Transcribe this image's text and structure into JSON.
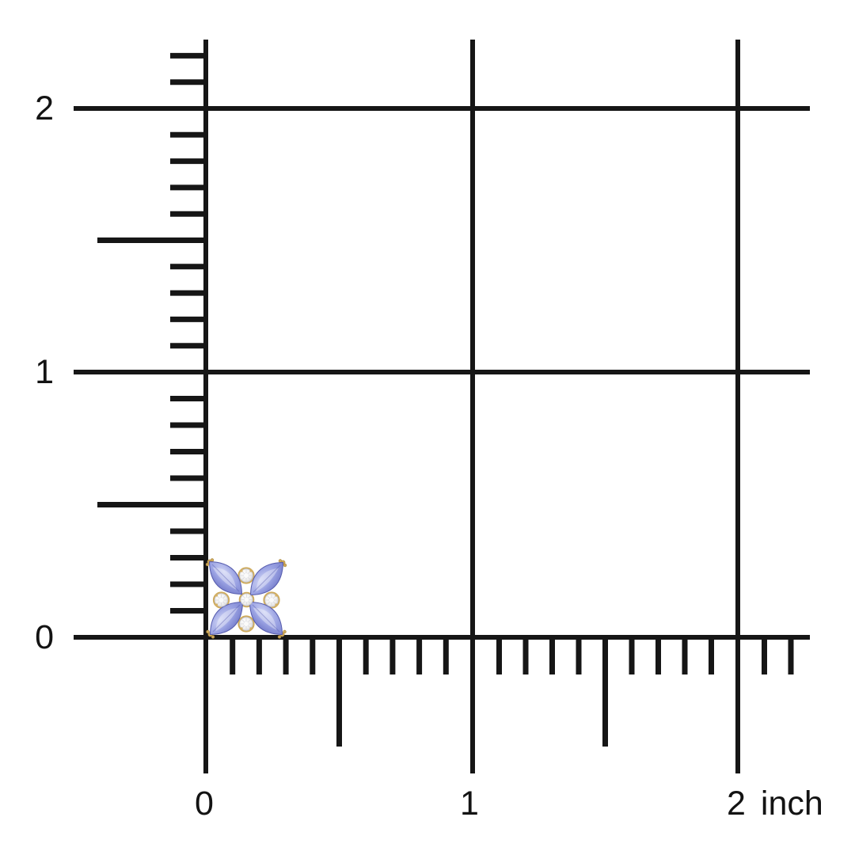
{
  "ruler_chart": {
    "unit": "inch",
    "y_axis_labels": [
      "2",
      "1",
      "0"
    ],
    "x_axis_labels": [
      "0",
      "1",
      "2"
    ],
    "inches_per_major_division": 1,
    "minor_divisions_per_inch": 10,
    "x_range_inches": [
      0,
      2
    ],
    "y_range_inches": [
      0,
      2
    ],
    "line_color": "#161616"
  },
  "product": {
    "name": "Tanzanite and diamond flower stud",
    "gem_shape": "marquise",
    "petal_count": 4,
    "diamond_count": 5,
    "approx_width_inches": 0.3,
    "approx_height_inches": 0.28,
    "position_inches": {
      "x_center": 0.15,
      "y_center": 0.15
    },
    "colors": {
      "tanzanite": "#7f86d2",
      "tanzanite_light": "#c6cbf2",
      "diamond": "#f2f1ef",
      "gold": "#cfa95a"
    }
  }
}
